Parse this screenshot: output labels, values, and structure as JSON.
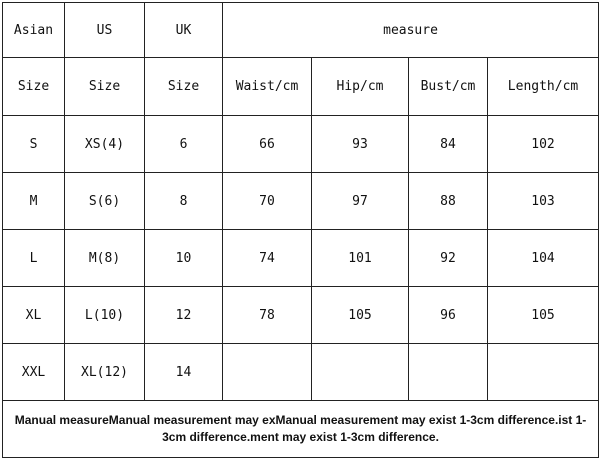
{
  "header": {
    "asian": "Asian",
    "us": "US",
    "uk": "UK",
    "measure": "measure"
  },
  "subheader": [
    "Size",
    "Size",
    "Size",
    "Waist/cm",
    "Hip/cm",
    "Bust/cm",
    "Length/cm"
  ],
  "rows": [
    [
      "S",
      "XS(4)",
      "6",
      "66",
      "93",
      "84",
      "102"
    ],
    [
      "M",
      "S(6)",
      "8",
      "70",
      "97",
      "88",
      "103"
    ],
    [
      "L",
      "M(8)",
      "10",
      "74",
      "101",
      "92",
      "104"
    ],
    [
      "XL",
      "L(10)",
      "12",
      "78",
      "105",
      "96",
      "105"
    ],
    [
      "XXL",
      "XL(12)",
      "14",
      "",
      "",
      "",
      ""
    ]
  ],
  "note": "Manual measureManual measurement may exManual measurement may exist 1-3cm difference.ist 1-3cm difference.ment may exist 1-3cm difference."
}
